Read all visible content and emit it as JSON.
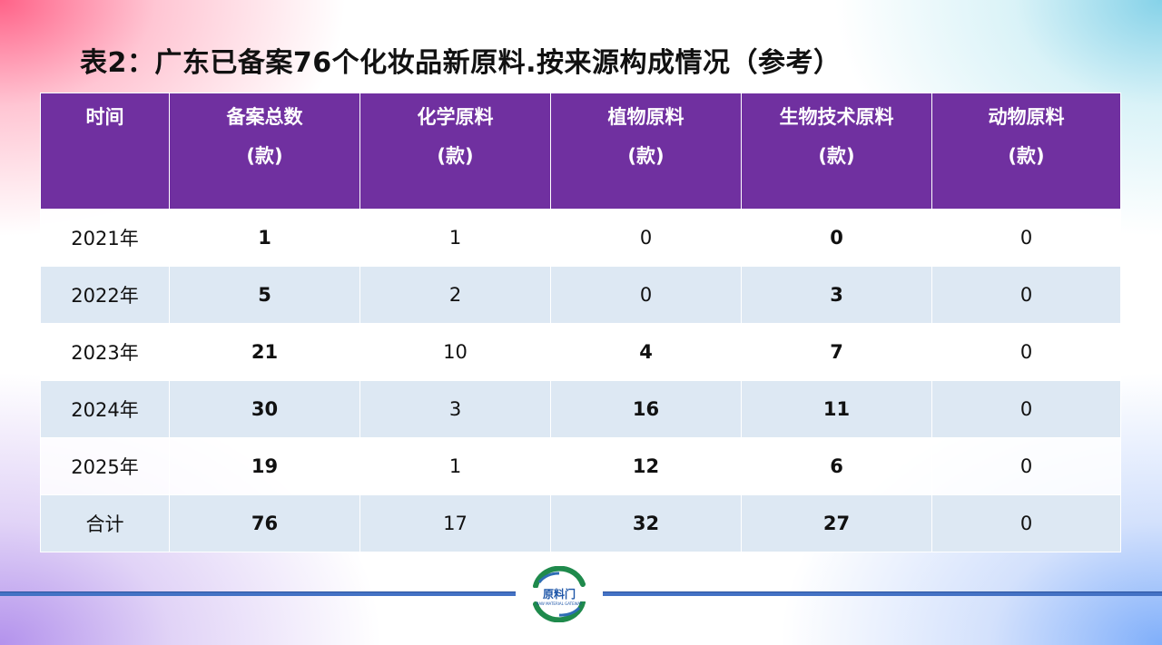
{
  "title": "表2：广东已备案76个化妆品新原料.按来源构成情况（参考）",
  "table": {
    "headers": [
      {
        "line1": "时间",
        "line2": ""
      },
      {
        "line1": "备案总数",
        "line2": "(款)"
      },
      {
        "line1": "化学原料",
        "line2": "(款)"
      },
      {
        "line1": "植物原料",
        "line2": "(款)"
      },
      {
        "line1": "生物技术原料",
        "line2": "(款)"
      },
      {
        "line1": "动物原料",
        "line2": "(款)"
      }
    ],
    "rows": [
      {
        "period": "2021年",
        "total": "1",
        "chemical": "1",
        "plant": "0",
        "biotech": "0",
        "animal": "0"
      },
      {
        "period": "2022年",
        "total": "5",
        "chemical": "2",
        "plant": "0",
        "biotech": "3",
        "animal": "0"
      },
      {
        "period": "2023年",
        "total": "21",
        "chemical": "10",
        "plant": "4",
        "biotech": "7",
        "animal": "0"
      },
      {
        "period": "2024年",
        "total": "30",
        "chemical": "3",
        "plant": "16",
        "biotech": "11",
        "animal": "0"
      },
      {
        "period": "2025年",
        "total": "19",
        "chemical": "1",
        "plant": "12",
        "biotech": "6",
        "animal": "0"
      },
      {
        "period": "合计",
        "total": "76",
        "chemical": "17",
        "plant": "32",
        "biotech": "27",
        "animal": "0"
      }
    ]
  },
  "logo": {
    "name": "原料门",
    "subtitle": "RAW MATERIAL GATEWAY"
  },
  "colors": {
    "header_bg": "#7030a0",
    "plant_text": "#0a10ee",
    "biotech_text": "#c55a11",
    "stripe": "#dde8f3",
    "footer_line": "#4472c4"
  }
}
